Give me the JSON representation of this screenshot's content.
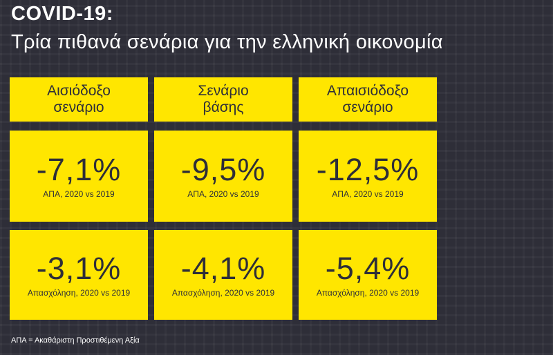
{
  "header": {
    "title": "COVID-19:",
    "subtitle": "Τρία πιθανά σενάρια για την ελληνική οικονομία"
  },
  "scenarios": [
    {
      "name_line1": "Αισιόδοξο",
      "name_line2": "σενάριο",
      "gdp_value": "-7,1%",
      "gdp_label": "ΑΠΑ, 2020 vs 2019",
      "employment_value": "-3,1%",
      "employment_label": "Απασχόληση, 2020 vs 2019"
    },
    {
      "name_line1": "Σενάριο",
      "name_line2": "βάσης",
      "gdp_value": "-9,5%",
      "gdp_label": "ΑΠΑ, 2020 vs 2019",
      "employment_value": "-4,1%",
      "employment_label": "Απασχόληση, 2020 vs 2019"
    },
    {
      "name_line1": "Απαισιόδοξο",
      "name_line2": "σενάριο",
      "gdp_value": "-12,5%",
      "gdp_label": "ΑΠΑ, 2020 vs 2019",
      "employment_value": "-5,4%",
      "employment_label": "Απασχόληση, 2020 vs 2019"
    }
  ],
  "footnote": "ΑΠΑ = Ακαθάριστη Προστιθέμενη Αξία",
  "colors": {
    "accent": "#ffe600",
    "background": "#2e2e38",
    "text_dark": "#2e2e38"
  }
}
